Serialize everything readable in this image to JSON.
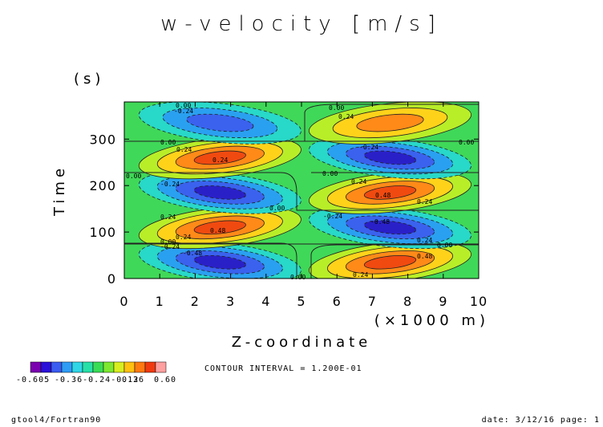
{
  "chart_data": {
    "type": "heatmap",
    "title": "w-velocity [m/s]",
    "xlabel": "Z-coordinate",
    "x_unit": "(×1000 m)",
    "ylabel": "Time",
    "y_unit": "(s)",
    "xlim": [
      0,
      10
    ],
    "ylim": [
      0,
      380
    ],
    "x_ticks": [
      "0",
      "1",
      "2",
      "3",
      "4",
      "5",
      "6",
      "7",
      "8",
      "9",
      "10"
    ],
    "y_ticks": [
      "0",
      "100",
      "200",
      "300"
    ],
    "cells": [
      {
        "z": 2.7,
        "t": 35,
        "w": -0.6
      },
      {
        "z": 7.5,
        "t": 35,
        "w": 0.6
      },
      {
        "z": 2.7,
        "t": 110,
        "w": 0.55
      },
      {
        "z": 7.5,
        "t": 110,
        "w": -0.55
      },
      {
        "z": 2.7,
        "t": 185,
        "w": -0.5
      },
      {
        "z": 7.5,
        "t": 185,
        "w": 0.5
      },
      {
        "z": 2.7,
        "t": 260,
        "w": 0.45
      },
      {
        "z": 7.5,
        "t": 260,
        "w": -0.45
      },
      {
        "z": 2.7,
        "t": 335,
        "w": -0.4
      },
      {
        "z": 7.5,
        "t": 335,
        "w": 0.4
      }
    ],
    "contour_labels": [
      "0.00",
      "0.24",
      "0.48",
      "-0.24",
      "-0.48"
    ],
    "colorbar": {
      "min_label": "-0.605",
      "mid_labels": "-0.36-0.24-0.12",
      "tick_labels": [
        "0.36",
        "0.60"
      ],
      "colors": [
        "#7a00b0",
        "#2a10d8",
        "#3a5cf0",
        "#2f9cf5",
        "#30d6e6",
        "#27e0a8",
        "#3adc55",
        "#7ee830",
        "#d8ee20",
        "#ffc010",
        "#ff7a10",
        "#f03a10",
        "#ffa0a0"
      ]
    },
    "contour_interval": "CONTOUR INTERVAL = 1.200E-01"
  },
  "footer": {
    "left": "gtool4/Fortran90",
    "right": "date: 3/12/16 page: 1"
  }
}
